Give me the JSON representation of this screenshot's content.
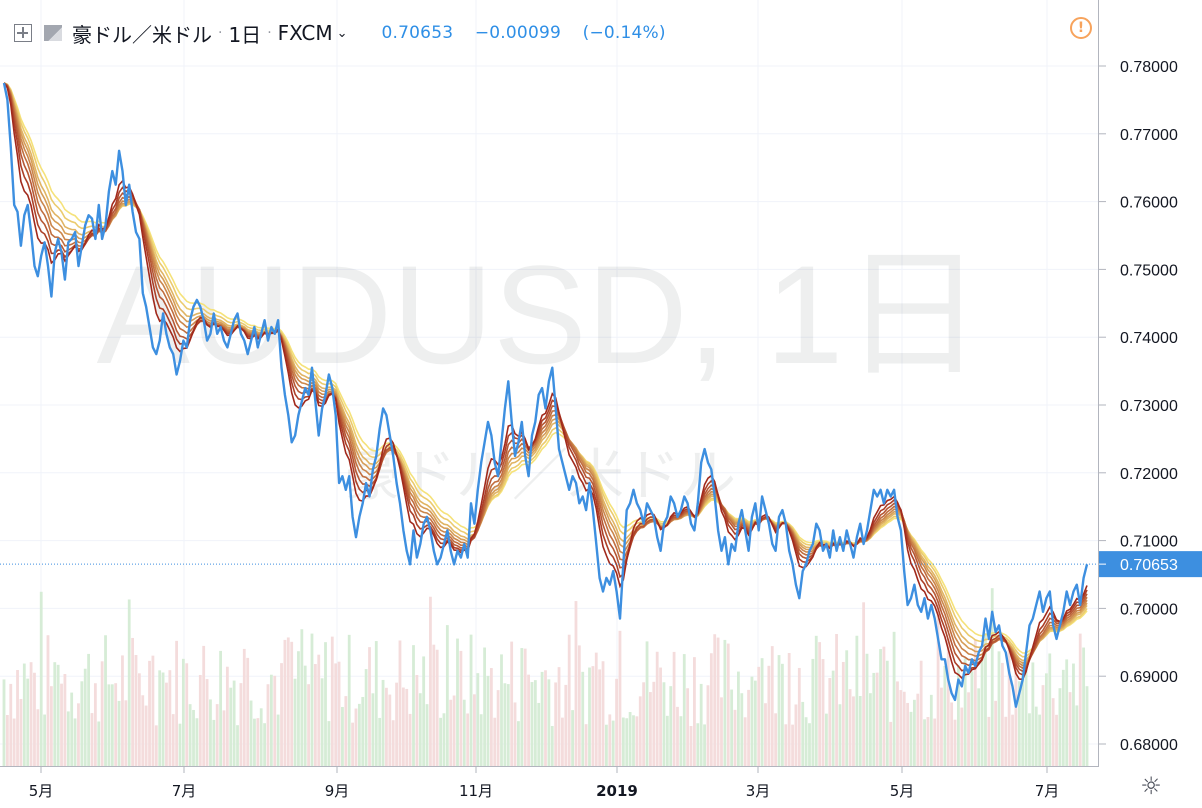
{
  "header": {
    "symbol_name": "豪ドル／米ドル",
    "interval": "1日",
    "exchange": "FXCM",
    "last_price": "0.70653",
    "change": "−0.00099",
    "change_pct": "(−0.14%)"
  },
  "watermark": {
    "line1": "AUDUSD, 1日",
    "line2": "豪ドル／米ドル"
  },
  "price_label": "0.70653",
  "icons": {
    "crosshair": "crosshair-add-icon",
    "flag": "symbol-flag-icon",
    "dropdown": "chevron-down-icon",
    "alert": "alert-warning-icon",
    "settings": "settings-sun-icon"
  },
  "colors": {
    "price_line": "#3d8fe0",
    "ribbon_fast": "#f5e27a",
    "ribbon_slow": "#a1291c",
    "vol_up": "#d6ecd6",
    "vol_down": "#f4dcdc",
    "accent": "#2f8fe6",
    "alert": "#f7a35c"
  },
  "chart_data": {
    "type": "line",
    "x_tick_labels": [
      "5月",
      "7月",
      "9月",
      "11月",
      "2019",
      "3月",
      "5月",
      "7月"
    ],
    "y_tick_labels": [
      "0.78000",
      "0.77000",
      "0.76000",
      "0.75000",
      "0.74000",
      "0.73000",
      "0.72000",
      "0.71000",
      "0.70000",
      "0.69000",
      "0.68000"
    ],
    "ylim": [
      0.6755,
      0.7845
    ],
    "last_value": 0.70653,
    "series": [
      {
        "values": [
          0.7775,
          0.775,
          0.768,
          0.7595,
          0.7585,
          0.7535,
          0.758,
          0.7595,
          0.7555,
          0.7505,
          0.749,
          0.752,
          0.754,
          0.7505,
          0.746,
          0.7525,
          0.7545,
          0.7525,
          0.7485,
          0.754,
          0.7545,
          0.7555,
          0.7505,
          0.7535,
          0.7565,
          0.758,
          0.7575,
          0.7545,
          0.7595,
          0.7545,
          0.7565,
          0.7615,
          0.7645,
          0.7625,
          0.7675,
          0.7645,
          0.7595,
          0.7625,
          0.7585,
          0.7555,
          0.7545,
          0.7465,
          0.7445,
          0.7415,
          0.7385,
          0.7375,
          0.7395,
          0.7435,
          0.7405,
          0.7385,
          0.7375,
          0.7345,
          0.7365,
          0.7395,
          0.7385,
          0.7425,
          0.7445,
          0.7455,
          0.7445,
          0.7425,
          0.7395,
          0.7405,
          0.7435,
          0.7405,
          0.7415,
          0.7395,
          0.7385,
          0.7405,
          0.7425,
          0.7435,
          0.7405,
          0.7395,
          0.7375,
          0.7395,
          0.7415,
          0.7385,
          0.7405,
          0.7425,
          0.7395,
          0.7415,
          0.7405,
          0.7425,
          0.7355,
          0.7315,
          0.7285,
          0.7245,
          0.7255,
          0.7285,
          0.7305,
          0.7325,
          0.7315,
          0.7355,
          0.7305,
          0.7255,
          0.7295,
          0.7315,
          0.7345,
          0.7325,
          0.7285,
          0.7185,
          0.7195,
          0.7175,
          0.7195,
          0.7135,
          0.7105,
          0.7135,
          0.7155,
          0.7185,
          0.7165,
          0.7205,
          0.7225,
          0.7265,
          0.7295,
          0.7285,
          0.7255,
          0.7225,
          0.7185,
          0.7155,
          0.7115,
          0.7085,
          0.7065,
          0.7115,
          0.7075,
          0.7095,
          0.7125,
          0.7135,
          0.7115,
          0.7085,
          0.7065,
          0.7075,
          0.7095,
          0.7115,
          0.7085,
          0.7065,
          0.7085,
          0.7075,
          0.7095,
          0.7075,
          0.7155,
          0.7125,
          0.7175,
          0.7215,
          0.7245,
          0.7275,
          0.7255,
          0.7215,
          0.7195,
          0.7245,
          0.7295,
          0.7335,
          0.7275,
          0.7225,
          0.7245,
          0.7275,
          0.7225,
          0.7195,
          0.7255,
          0.7275,
          0.7315,
          0.7325,
          0.7295,
          0.7335,
          0.7355,
          0.7295,
          0.7235,
          0.7215,
          0.7195,
          0.7175,
          0.7195,
          0.7185,
          0.7155,
          0.7165,
          0.7145,
          0.7185,
          0.7145,
          0.7095,
          0.7045,
          0.7025,
          0.7045,
          0.7035,
          0.7055,
          0.7025,
          0.6985,
          0.7065,
          0.7145,
          0.7155,
          0.7175,
          0.7155,
          0.7145,
          0.7125,
          0.7155,
          0.7145,
          0.7135,
          0.7105,
          0.7085,
          0.7125,
          0.7135,
          0.7165,
          0.7155,
          0.7135,
          0.7145,
          0.7165,
          0.7155,
          0.7125,
          0.7115,
          0.7155,
          0.7215,
          0.7235,
          0.7215,
          0.7205,
          0.7165,
          0.7115,
          0.7085,
          0.7105,
          0.7065,
          0.7095,
          0.7085,
          0.7125,
          0.7145,
          0.7115,
          0.7085,
          0.7135,
          0.7155,
          0.7115,
          0.7165,
          0.7145,
          0.7125,
          0.7095,
          0.7085,
          0.7135,
          0.7145,
          0.7125,
          0.7085,
          0.7065,
          0.7035,
          0.7015,
          0.7055,
          0.7065,
          0.7085,
          0.7095,
          0.7125,
          0.7115,
          0.7085,
          0.7095,
          0.7075,
          0.7115,
          0.7085,
          0.7105,
          0.7085,
          0.7115,
          0.7095,
          0.7075,
          0.7105,
          0.7125,
          0.7095,
          0.7115,
          0.7145,
          0.7175,
          0.7165,
          0.7175,
          0.7155,
          0.7175,
          0.7165,
          0.7175,
          0.7135,
          0.7115,
          0.7055,
          0.7005,
          0.7015,
          0.7035,
          0.7005,
          0.6995,
          0.7015,
          0.6985,
          0.7005,
          0.6985,
          0.6955,
          0.6925,
          0.6925,
          0.6895,
          0.6875,
          0.6865,
          0.6895,
          0.6885,
          0.6915,
          0.6905,
          0.6925,
          0.6915,
          0.6935,
          0.6945,
          0.6985,
          0.6955,
          0.6995,
          0.6965,
          0.6975,
          0.6945,
          0.6935,
          0.6905,
          0.6885,
          0.6855,
          0.6875,
          0.6895,
          0.6935,
          0.6975,
          0.6985,
          0.7005,
          0.7025,
          0.6995,
          0.7015,
          0.7025,
          0.6975,
          0.6955,
          0.6975,
          0.6995,
          0.7025,
          0.7005,
          0.7025,
          0.7035,
          0.7005,
          0.7045,
          0.7065
        ]
      }
    ]
  }
}
